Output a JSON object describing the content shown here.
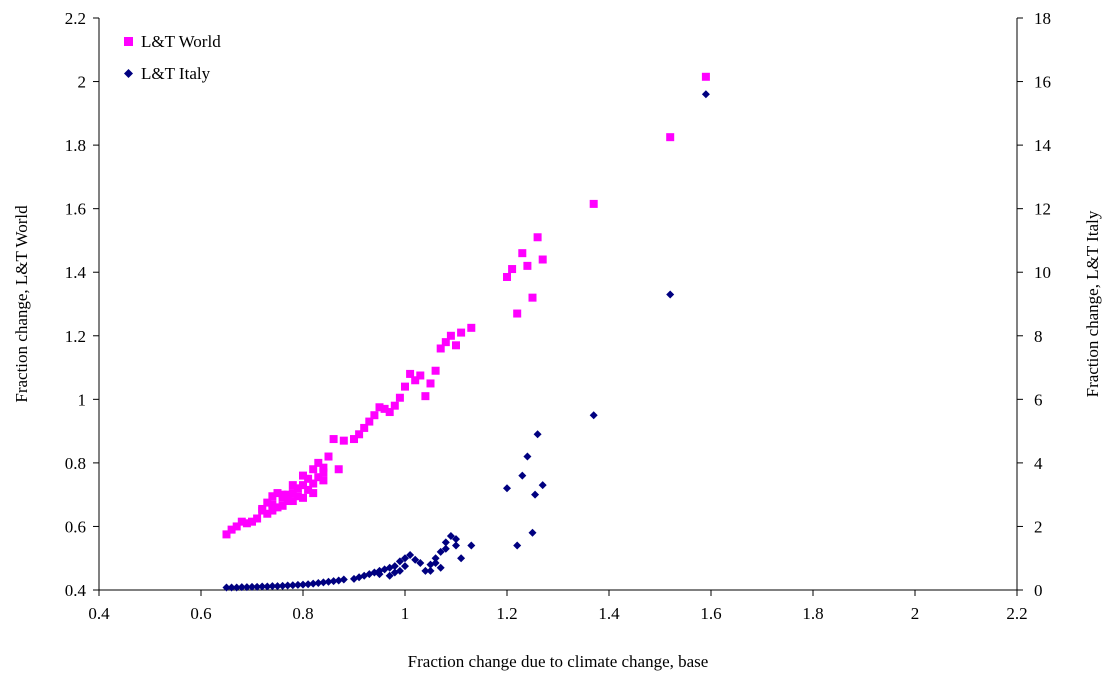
{
  "chart_data": {
    "type": "scatter",
    "title": "",
    "xlabel": "Fraction change due to climate change, base",
    "ylabel_left": "Fraction change, L&T World",
    "ylabel_right": "Fraction change, L&T Italy",
    "xlim": [
      0.4,
      2.2
    ],
    "ylim_left": [
      0.4,
      2.2
    ],
    "ylim_right": [
      0,
      18
    ],
    "x_ticks": [
      "0.4",
      "0.6",
      "0.8",
      "1",
      "1.2",
      "1.4",
      "1.6",
      "1.8",
      "2",
      "2.2"
    ],
    "y_left_ticks": [
      "0.4",
      "0.6",
      "0.8",
      "1",
      "1.2",
      "1.4",
      "1.6",
      "1.8",
      "2",
      "2.2"
    ],
    "y_right_ticks": [
      "0",
      "2",
      "4",
      "6",
      "8",
      "10",
      "12",
      "14",
      "16",
      "18"
    ],
    "grid": false,
    "legend_position": "top-left",
    "series": [
      {
        "name": "L&T World",
        "axis": "left",
        "marker": "square",
        "color": "#ff00ff",
        "points": [
          [
            0.65,
            0.575
          ],
          [
            0.66,
            0.59
          ],
          [
            0.67,
            0.6
          ],
          [
            0.68,
            0.615
          ],
          [
            0.69,
            0.61
          ],
          [
            0.7,
            0.615
          ],
          [
            0.71,
            0.625
          ],
          [
            0.72,
            0.65
          ],
          [
            0.73,
            0.64
          ],
          [
            0.74,
            0.67
          ],
          [
            0.75,
            0.66
          ],
          [
            0.76,
            0.69
          ],
          [
            0.77,
            0.68
          ],
          [
            0.78,
            0.705
          ],
          [
            0.79,
            0.72
          ],
          [
            0.8,
            0.73
          ],
          [
            0.81,
            0.75
          ],
          [
            0.82,
            0.78
          ],
          [
            0.83,
            0.8
          ],
          [
            0.84,
            0.785
          ],
          [
            0.85,
            0.82
          ],
          [
            0.86,
            0.875
          ],
          [
            0.87,
            0.78
          ],
          [
            0.88,
            0.87
          ],
          [
            0.9,
            0.875
          ],
          [
            0.91,
            0.89
          ],
          [
            0.92,
            0.91
          ],
          [
            0.93,
            0.93
          ],
          [
            0.94,
            0.95
          ],
          [
            0.95,
            0.975
          ],
          [
            0.96,
            0.97
          ],
          [
            0.97,
            0.96
          ],
          [
            0.98,
            0.98
          ],
          [
            0.99,
            1.005
          ],
          [
            1.0,
            1.04
          ],
          [
            1.01,
            1.08
          ],
          [
            1.02,
            1.06
          ],
          [
            1.03,
            1.075
          ],
          [
            1.04,
            1.01
          ],
          [
            1.05,
            1.05
          ],
          [
            1.06,
            1.09
          ],
          [
            1.07,
            1.16
          ],
          [
            1.08,
            1.18
          ],
          [
            1.09,
            1.2
          ],
          [
            1.1,
            1.17
          ],
          [
            1.11,
            1.21
          ],
          [
            1.13,
            1.225
          ],
          [
            1.2,
            1.385
          ],
          [
            1.21,
            1.41
          ],
          [
            1.22,
            1.27
          ],
          [
            1.23,
            1.46
          ],
          [
            1.24,
            1.42
          ],
          [
            1.25,
            1.32
          ],
          [
            1.26,
            1.51
          ],
          [
            1.27,
            1.44
          ],
          [
            1.37,
            1.615
          ],
          [
            1.52,
            1.825
          ],
          [
            1.59,
            2.015
          ],
          [
            0.72,
            0.655
          ],
          [
            0.73,
            0.675
          ],
          [
            0.74,
            0.695
          ],
          [
            0.75,
            0.705
          ],
          [
            0.76,
            0.665
          ],
          [
            0.77,
            0.7
          ],
          [
            0.78,
            0.68
          ],
          [
            0.79,
            0.695
          ],
          [
            0.8,
            0.76
          ],
          [
            0.81,
            0.715
          ],
          [
            0.82,
            0.735
          ],
          [
            0.83,
            0.755
          ],
          [
            0.84,
            0.77
          ],
          [
            0.8,
            0.69
          ],
          [
            0.78,
            0.73
          ],
          [
            0.76,
            0.7
          ],
          [
            0.74,
            0.65
          ],
          [
            0.82,
            0.705
          ],
          [
            0.84,
            0.745
          ]
        ]
      },
      {
        "name": "L&T Italy",
        "axis": "right",
        "marker": "diamond",
        "color": "#000080",
        "points": [
          [
            0.65,
            0.08
          ],
          [
            0.66,
            0.08
          ],
          [
            0.67,
            0.08
          ],
          [
            0.68,
            0.09
          ],
          [
            0.69,
            0.09
          ],
          [
            0.7,
            0.1
          ],
          [
            0.71,
            0.1
          ],
          [
            0.72,
            0.11
          ],
          [
            0.73,
            0.11
          ],
          [
            0.74,
            0.12
          ],
          [
            0.75,
            0.12
          ],
          [
            0.76,
            0.13
          ],
          [
            0.77,
            0.14
          ],
          [
            0.78,
            0.15
          ],
          [
            0.79,
            0.16
          ],
          [
            0.8,
            0.17
          ],
          [
            0.81,
            0.18
          ],
          [
            0.82,
            0.2
          ],
          [
            0.83,
            0.22
          ],
          [
            0.84,
            0.24
          ],
          [
            0.85,
            0.26
          ],
          [
            0.86,
            0.28
          ],
          [
            0.87,
            0.3
          ],
          [
            0.88,
            0.33
          ],
          [
            0.9,
            0.35
          ],
          [
            0.91,
            0.4
          ],
          [
            0.92,
            0.45
          ],
          [
            0.93,
            0.5
          ],
          [
            0.94,
            0.55
          ],
          [
            0.95,
            0.6
          ],
          [
            0.96,
            0.65
          ],
          [
            0.97,
            0.7
          ],
          [
            0.98,
            0.75
          ],
          [
            0.99,
            0.9
          ],
          [
            1.0,
            1.0
          ],
          [
            1.01,
            1.1
          ],
          [
            1.02,
            0.95
          ],
          [
            1.03,
            0.85
          ],
          [
            1.04,
            0.6
          ],
          [
            1.05,
            0.8
          ],
          [
            1.06,
            1.0
          ],
          [
            1.07,
            1.2
          ],
          [
            1.08,
            1.5
          ],
          [
            1.09,
            1.7
          ],
          [
            1.1,
            1.4
          ],
          [
            1.11,
            1.0
          ],
          [
            1.13,
            1.4
          ],
          [
            1.2,
            3.2
          ],
          [
            1.22,
            1.4
          ],
          [
            1.23,
            3.6
          ],
          [
            1.24,
            4.2
          ],
          [
            1.25,
            1.8
          ],
          [
            1.255,
            3.0
          ],
          [
            1.26,
            4.9
          ],
          [
            1.27,
            3.3
          ],
          [
            1.37,
            5.5
          ],
          [
            1.52,
            9.3
          ],
          [
            1.59,
            15.6
          ],
          [
            0.99,
            0.6
          ],
          [
            1.0,
            0.75
          ],
          [
            1.05,
            0.6
          ],
          [
            1.06,
            0.85
          ],
          [
            1.07,
            0.7
          ],
          [
            1.08,
            1.3
          ],
          [
            1.1,
            1.6
          ],
          [
            0.98,
            0.55
          ],
          [
            0.97,
            0.45
          ],
          [
            0.95,
            0.5
          ]
        ]
      }
    ]
  }
}
